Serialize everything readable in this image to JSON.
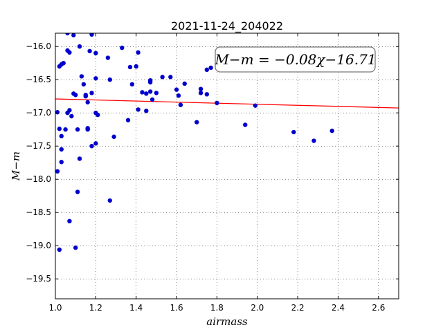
{
  "chart_data": {
    "type": "scatter",
    "title": "2021-11-24_204022",
    "xlabel": "airmass",
    "ylabel": "M−m",
    "xlim": [
      1.0,
      2.7
    ],
    "ylim": [
      -15.8,
      -19.8
    ],
    "y_inverted": true,
    "grid": true,
    "x_ticks": [
      1.0,
      1.2,
      1.4,
      1.6,
      1.8,
      2.0,
      2.2,
      2.4,
      2.6
    ],
    "x_tick_labels": [
      "1.0",
      "1.2",
      "1.4",
      "1.6",
      "1.8",
      "2.0",
      "2.2",
      "2.4",
      "2.6"
    ],
    "y_ticks": [
      -16.0,
      -16.5,
      -17.0,
      -17.5,
      -18.0,
      -18.5,
      -19.0,
      -19.5
    ],
    "y_tick_labels": [
      "−16.0",
      "−16.5",
      "−17.0",
      "−17.5",
      "−18.0",
      "−18.5",
      "−19.0",
      "−19.5"
    ],
    "annotation": "M−m = −0.08χ−16.71",
    "fit_line": {
      "slope": -0.08,
      "intercept": -16.71,
      "x_range": [
        1.0,
        2.7
      ],
      "color": "#ff0000"
    },
    "series": [
      {
        "color": "#0000cc",
        "points": [
          [
            1.06,
            -15.8
          ],
          [
            1.09,
            -15.83
          ],
          [
            1.18,
            -15.82
          ],
          [
            1.06,
            -16.06
          ],
          [
            1.07,
            -16.09
          ],
          [
            1.12,
            -16.0
          ],
          [
            1.17,
            -16.07
          ],
          [
            1.2,
            -16.1
          ],
          [
            1.33,
            -16.02
          ],
          [
            1.41,
            -16.09
          ],
          [
            1.02,
            -16.3
          ],
          [
            1.03,
            -16.27
          ],
          [
            1.04,
            -16.25
          ],
          [
            1.26,
            -16.17
          ],
          [
            1.37,
            -16.31
          ],
          [
            1.4,
            -16.3
          ],
          [
            1.75,
            -16.35
          ],
          [
            1.77,
            -16.32
          ],
          [
            1.13,
            -16.45
          ],
          [
            1.2,
            -16.48
          ],
          [
            1.27,
            -16.5
          ],
          [
            1.38,
            -16.57
          ],
          [
            1.47,
            -16.51
          ],
          [
            1.47,
            -16.54
          ],
          [
            1.53,
            -16.46
          ],
          [
            1.57,
            -16.46
          ],
          [
            1.64,
            -16.56
          ],
          [
            1.09,
            -16.71
          ],
          [
            1.1,
            -16.73
          ],
          [
            1.14,
            -16.57
          ],
          [
            1.15,
            -16.75
          ],
          [
            1.15,
            -16.73
          ],
          [
            1.18,
            -16.7
          ],
          [
            1.43,
            -16.69
          ],
          [
            1.45,
            -16.71
          ],
          [
            1.47,
            -16.68
          ],
          [
            1.48,
            -16.8
          ],
          [
            1.5,
            -16.7
          ],
          [
            1.6,
            -16.65
          ],
          [
            1.61,
            -16.74
          ],
          [
            1.72,
            -16.64
          ],
          [
            1.72,
            -16.7
          ],
          [
            1.75,
            -16.72
          ],
          [
            1.16,
            -16.84
          ],
          [
            1.62,
            -16.88
          ],
          [
            1.8,
            -16.85
          ],
          [
            1.99,
            -16.89
          ],
          [
            1.01,
            -16.99
          ],
          [
            1.06,
            -17.0
          ],
          [
            1.07,
            -16.96
          ],
          [
            1.08,
            -17.05
          ],
          [
            1.2,
            -17.0
          ],
          [
            1.21,
            -17.03
          ],
          [
            1.36,
            -17.11
          ],
          [
            1.41,
            -16.95
          ],
          [
            1.45,
            -16.97
          ],
          [
            1.7,
            -17.14
          ],
          [
            1.02,
            -17.24
          ],
          [
            1.05,
            -17.25
          ],
          [
            1.03,
            -17.35
          ],
          [
            1.11,
            -17.25
          ],
          [
            1.16,
            -17.23
          ],
          [
            1.16,
            -17.25
          ],
          [
            1.29,
            -17.36
          ],
          [
            1.94,
            -17.18
          ],
          [
            2.18,
            -17.29
          ],
          [
            2.37,
            -17.27
          ],
          [
            1.03,
            -17.55
          ],
          [
            1.18,
            -17.5
          ],
          [
            1.2,
            -17.46
          ],
          [
            2.28,
            -17.42
          ],
          [
            1.03,
            -17.74
          ],
          [
            1.12,
            -17.69
          ],
          [
            1.01,
            -17.88
          ],
          [
            1.11,
            -18.19
          ],
          [
            1.27,
            -18.32
          ],
          [
            1.07,
            -18.63
          ],
          [
            1.1,
            -19.03
          ],
          [
            1.02,
            -19.06
          ]
        ]
      }
    ]
  }
}
